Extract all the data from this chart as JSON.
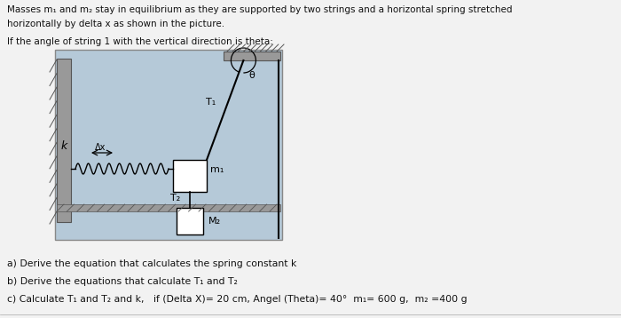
{
  "title_line1": "Masses m₁ and m₂ stay in equilibrium as they are supported by two strings and a horizontal spring stretched",
  "title_line2": "horizontally by delta x as shown in the picture.",
  "subtitle": "If the angle of string 1 with the vertical direction is theta:",
  "question_a": "a) Derive the equation that calculates the spring constant k",
  "question_b": "b) Derive the equations that calculate T₁ and T₂",
  "question_c": "c) Calculate T₁ and T₂ and k,   if (Delta X)= 20 cm, Angel (Theta)= 40°  m₁= 600 g,  m₂ =400 g",
  "page_bg": "#f2f2f2",
  "diagram_bg": "#b5c9d8",
  "text_color": "#111111",
  "wall_color": "#7a7a7a",
  "box_color": "#ffffff",
  "line_color": "#111111"
}
